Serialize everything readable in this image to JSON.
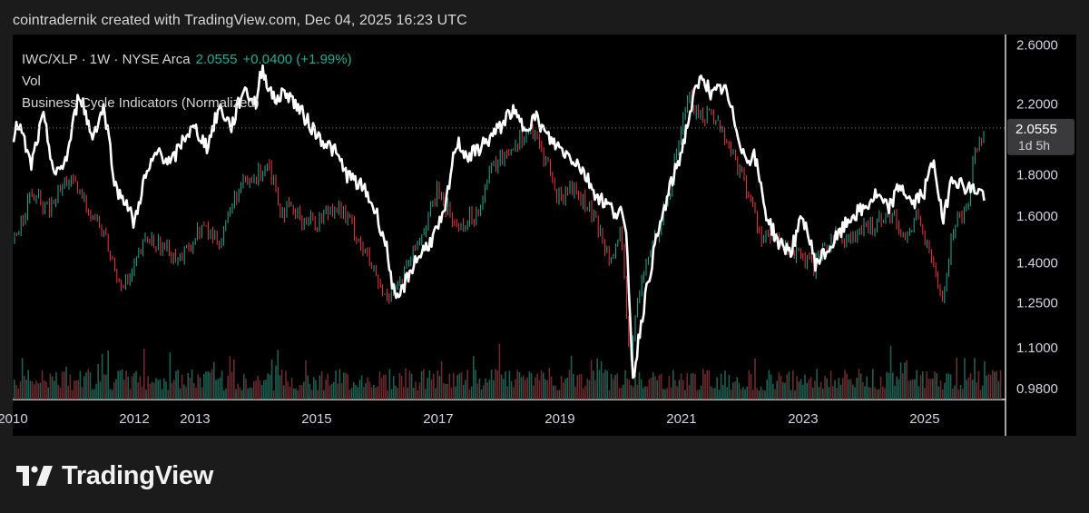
{
  "header": {
    "credit": "cointradernik created with TradingView.com, Dec 04, 2025 16:23 UTC"
  },
  "legend": {
    "symbol": "IWC/XLP · 1W · NYSE Arca",
    "last": "2.0555",
    "change": "+0.0400 (+1.99%)",
    "line2": "Vol",
    "line3": "Business Cycle Indicators (Normalized)"
  },
  "price_tag": {
    "value": "2.0555",
    "countdown": "1d 5h"
  },
  "brand": {
    "name": "TradingView",
    "logo_icon": "tradingview-logo-icon"
  },
  "colors": {
    "up": "#22ab94",
    "down": "#f23645",
    "overlay": "#ffffff",
    "background": "#000000"
  },
  "chart_data": {
    "type": "line",
    "title": "IWC/XLP · 1W · NYSE Arca",
    "yscale": "log",
    "ylim": [
      0.95,
      2.68
    ],
    "xlim": [
      2010.0,
      2026.3
    ],
    "y_ticks": [
      "2.6000",
      "2.2000",
      "1.8000",
      "1.6000",
      "1.4000",
      "1.2500",
      "1.1000",
      "0.9800"
    ],
    "x_ticks": [
      "2010",
      "2012",
      "2013",
      "2015",
      "2017",
      "2019",
      "2021",
      "2023",
      "2025"
    ],
    "grid": false,
    "series": [
      {
        "name": "IWC/XLP",
        "x": [
          2010.0,
          2010.3,
          2010.6,
          2010.9,
          2011.2,
          2011.5,
          2011.7,
          2011.9,
          2012.2,
          2012.5,
          2012.8,
          2013.1,
          2013.4,
          2013.7,
          2014.0,
          2014.2,
          2014.4,
          2014.7,
          2015.0,
          2015.3,
          2015.6,
          2015.9,
          2016.1,
          2016.4,
          2016.7,
          2017.0,
          2017.3,
          2017.6,
          2017.9,
          2018.2,
          2018.5,
          2018.8,
          2018.95,
          2019.2,
          2019.5,
          2019.8,
          2020.0,
          2020.15,
          2020.3,
          2020.5,
          2020.8,
          2021.1,
          2021.3,
          2021.5,
          2021.8,
          2022.0,
          2022.3,
          2022.6,
          2022.9,
          2023.2,
          2023.5,
          2023.8,
          2024.1,
          2024.4,
          2024.7,
          2024.9,
          2025.05,
          2025.3,
          2025.5,
          2025.7,
          2025.85,
          2026.0
        ],
        "values": [
          1.48,
          1.7,
          1.62,
          1.78,
          1.66,
          1.52,
          1.35,
          1.32,
          1.5,
          1.46,
          1.42,
          1.55,
          1.49,
          1.72,
          1.78,
          1.88,
          1.64,
          1.6,
          1.57,
          1.66,
          1.55,
          1.38,
          1.27,
          1.33,
          1.5,
          1.72,
          1.55,
          1.6,
          1.84,
          1.95,
          2.05,
          1.86,
          1.68,
          1.74,
          1.62,
          1.44,
          1.5,
          1.05,
          1.28,
          1.46,
          1.7,
          2.25,
          2.12,
          2.15,
          1.94,
          1.79,
          1.52,
          1.48,
          1.43,
          1.38,
          1.52,
          1.5,
          1.55,
          1.63,
          1.5,
          1.62,
          1.44,
          1.28,
          1.58,
          1.65,
          1.96,
          2.06
        ]
      },
      {
        "name": "Business Cycle Indicators (Normalized)",
        "x": [
          2010.0,
          2010.1,
          2010.3,
          2010.5,
          2010.7,
          2010.9,
          2011.1,
          2011.3,
          2011.5,
          2011.7,
          2011.85,
          2012.0,
          2012.15,
          2012.4,
          2012.6,
          2012.85,
          2013.0,
          2013.2,
          2013.4,
          2013.6,
          2013.8,
          2014.0,
          2014.1,
          2014.3,
          2014.5,
          2014.8,
          2015.0,
          2015.3,
          2015.5,
          2015.8,
          2016.0,
          2016.15,
          2016.3,
          2016.6,
          2016.9,
          2017.1,
          2017.3,
          2017.5,
          2017.8,
          2018.0,
          2018.2,
          2018.4,
          2018.6,
          2018.8,
          2019.0,
          2019.3,
          2019.6,
          2019.9,
          2020.0,
          2020.1,
          2020.2,
          2020.35,
          2020.55,
          2020.8,
          2021.0,
          2021.2,
          2021.35,
          2021.5,
          2021.7,
          2021.9,
          2022.05,
          2022.2,
          2022.4,
          2022.6,
          2022.8,
          2023.0,
          2023.2,
          2023.4,
          2023.6,
          2023.8,
          2024.0,
          2024.2,
          2024.4,
          2024.6,
          2024.8,
          2025.0,
          2025.15,
          2025.3,
          2025.45,
          2025.6,
          2025.75,
          2025.9,
          2026.0
        ],
        "values": [
          2.0,
          2.08,
          1.84,
          2.12,
          1.78,
          1.9,
          2.28,
          2.0,
          2.18,
          1.72,
          1.68,
          1.56,
          1.76,
          1.93,
          1.85,
          2.02,
          2.05,
          1.95,
          2.18,
          2.06,
          2.3,
          2.2,
          2.44,
          2.22,
          2.28,
          2.12,
          2.02,
          1.92,
          1.8,
          1.72,
          1.6,
          1.46,
          1.24,
          1.4,
          1.5,
          1.6,
          1.98,
          1.89,
          1.98,
          2.05,
          2.16,
          2.06,
          2.12,
          2.0,
          1.94,
          1.86,
          1.7,
          1.62,
          1.63,
          1.48,
          1.0,
          1.2,
          1.45,
          1.72,
          1.92,
          2.24,
          2.39,
          2.25,
          2.31,
          2.06,
          1.88,
          1.9,
          1.6,
          1.48,
          1.45,
          1.6,
          1.4,
          1.45,
          1.52,
          1.6,
          1.63,
          1.7,
          1.63,
          1.75,
          1.65,
          1.72,
          1.88,
          1.56,
          1.8,
          1.75,
          1.73,
          1.72,
          1.69
        ]
      }
    ]
  }
}
